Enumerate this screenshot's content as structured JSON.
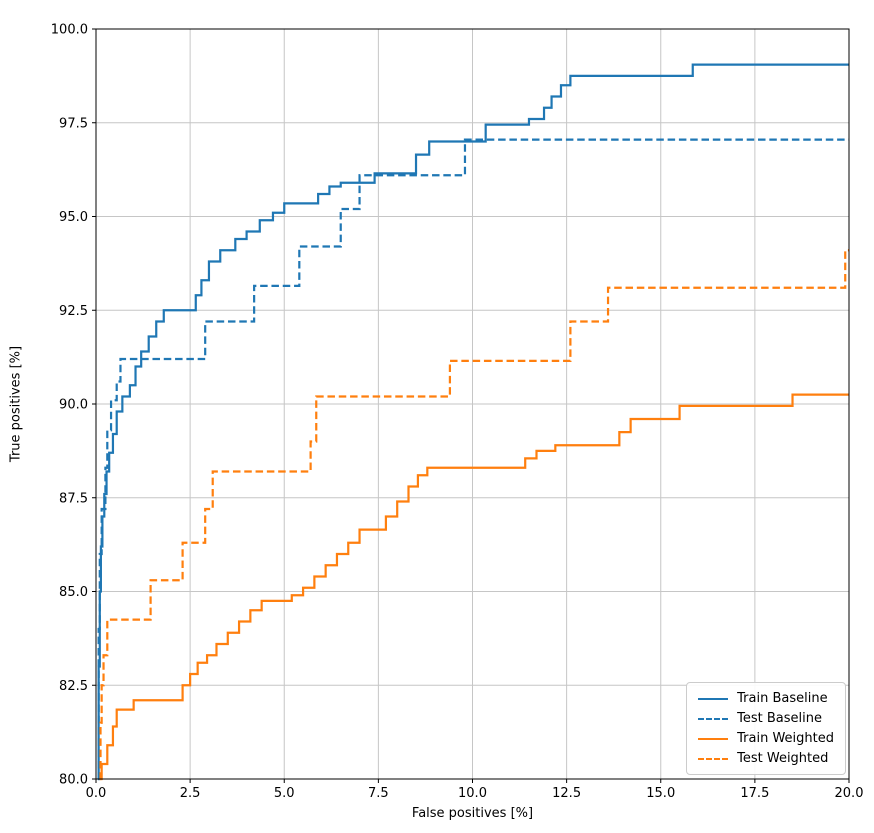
{
  "chart_data": {
    "type": "line",
    "step": true,
    "title": "",
    "xlabel": "False positives [%]",
    "ylabel": "True positives [%]",
    "xlim": [
      0,
      20
    ],
    "ylim": [
      80,
      100
    ],
    "grid": true,
    "xticks": [
      0,
      2.5,
      5,
      7.5,
      10,
      12.5,
      15,
      17.5,
      20
    ],
    "xtick_labels": [
      "0.0",
      "2.5",
      "5.0",
      "7.5",
      "10.0",
      "12.5",
      "15.0",
      "17.5",
      "20.0"
    ],
    "yticks": [
      80,
      82.5,
      85,
      87.5,
      90,
      92.5,
      95,
      97.5,
      100
    ],
    "ytick_labels": [
      "80.0",
      "82.5",
      "85.0",
      "87.5",
      "90.0",
      "92.5",
      "95.0",
      "97.5",
      "100.0"
    ],
    "legend_position": "lower right",
    "colors": {
      "baseline": "#1f77b4",
      "weighted": "#ff7f0e",
      "grid": "#c6c6c6",
      "spine": "#000000"
    },
    "series": [
      {
        "name": "Train Baseline",
        "color": "#1f77b4",
        "dash": "solid",
        "points": [
          [
            0.05,
            80.0
          ],
          [
            0.07,
            83.0
          ],
          [
            0.1,
            85.0
          ],
          [
            0.13,
            86.2
          ],
          [
            0.17,
            87.0
          ],
          [
            0.22,
            87.6
          ],
          [
            0.28,
            88.2
          ],
          [
            0.35,
            88.7
          ],
          [
            0.45,
            89.2
          ],
          [
            0.55,
            89.8
          ],
          [
            0.7,
            90.2
          ],
          [
            0.9,
            90.5
          ],
          [
            1.05,
            91.0
          ],
          [
            1.2,
            91.4
          ],
          [
            1.4,
            91.8
          ],
          [
            1.6,
            92.2
          ],
          [
            1.8,
            92.5
          ],
          [
            2.65,
            92.9
          ],
          [
            2.8,
            93.3
          ],
          [
            3.0,
            93.8
          ],
          [
            3.3,
            94.1
          ],
          [
            3.7,
            94.4
          ],
          [
            4.0,
            94.6
          ],
          [
            4.35,
            94.9
          ],
          [
            4.7,
            95.1
          ],
          [
            5.0,
            95.35
          ],
          [
            5.9,
            95.6
          ],
          [
            6.2,
            95.8
          ],
          [
            6.5,
            95.9
          ],
          [
            7.4,
            96.15
          ],
          [
            8.5,
            96.65
          ],
          [
            8.85,
            97.0
          ],
          [
            10.35,
            97.45
          ],
          [
            11.5,
            97.6
          ],
          [
            11.9,
            97.9
          ],
          [
            12.1,
            98.2
          ],
          [
            12.35,
            98.5
          ],
          [
            12.6,
            98.75
          ],
          [
            15.85,
            99.05
          ],
          [
            20,
            99.05
          ]
        ]
      },
      {
        "name": "Test Baseline",
        "color": "#1f77b4",
        "dash": "dashed",
        "points": [
          [
            0.05,
            80.0
          ],
          [
            0.07,
            84.0
          ],
          [
            0.1,
            86.0
          ],
          [
            0.15,
            87.2
          ],
          [
            0.25,
            88.3
          ],
          [
            0.3,
            89.3
          ],
          [
            0.4,
            90.1
          ],
          [
            0.55,
            90.6
          ],
          [
            0.65,
            91.2
          ],
          [
            2.9,
            92.2
          ],
          [
            4.2,
            93.15
          ],
          [
            5.4,
            94.2
          ],
          [
            6.5,
            95.2
          ],
          [
            7.0,
            96.1
          ],
          [
            9.8,
            97.05
          ],
          [
            20,
            97.05
          ]
        ]
      },
      {
        "name": "Train Weighted",
        "color": "#ff7f0e",
        "dash": "solid",
        "points": [
          [
            0.1,
            80.0
          ],
          [
            0.15,
            80.4
          ],
          [
            0.3,
            80.9
          ],
          [
            0.45,
            81.4
          ],
          [
            0.55,
            81.85
          ],
          [
            1.0,
            82.1
          ],
          [
            2.3,
            82.5
          ],
          [
            2.5,
            82.8
          ],
          [
            2.7,
            83.1
          ],
          [
            2.95,
            83.3
          ],
          [
            3.2,
            83.6
          ],
          [
            3.5,
            83.9
          ],
          [
            3.8,
            84.2
          ],
          [
            4.1,
            84.5
          ],
          [
            4.4,
            84.75
          ],
          [
            5.2,
            84.9
          ],
          [
            5.5,
            85.1
          ],
          [
            5.8,
            85.4
          ],
          [
            6.1,
            85.7
          ],
          [
            6.4,
            86.0
          ],
          [
            6.7,
            86.3
          ],
          [
            7.0,
            86.65
          ],
          [
            7.7,
            87.0
          ],
          [
            8.0,
            87.4
          ],
          [
            8.3,
            87.8
          ],
          [
            8.55,
            88.1
          ],
          [
            8.8,
            88.3
          ],
          [
            11.4,
            88.55
          ],
          [
            11.7,
            88.75
          ],
          [
            12.2,
            88.9
          ],
          [
            13.9,
            89.25
          ],
          [
            14.2,
            89.6
          ],
          [
            15.5,
            89.95
          ],
          [
            18.5,
            90.25
          ],
          [
            20,
            90.25
          ]
        ]
      },
      {
        "name": "Test Weighted",
        "color": "#ff7f0e",
        "dash": "dashed",
        "points": [
          [
            0.1,
            80.0
          ],
          [
            0.12,
            81.5
          ],
          [
            0.15,
            82.5
          ],
          [
            0.2,
            83.3
          ],
          [
            0.3,
            84.25
          ],
          [
            1.45,
            85.3
          ],
          [
            2.3,
            86.3
          ],
          [
            2.9,
            87.2
          ],
          [
            3.1,
            88.2
          ],
          [
            5.7,
            89.0
          ],
          [
            5.85,
            90.2
          ],
          [
            9.4,
            91.15
          ],
          [
            12.6,
            92.2
          ],
          [
            13.6,
            93.1
          ],
          [
            19.9,
            94.1
          ],
          [
            20,
            94.1
          ]
        ]
      }
    ]
  }
}
